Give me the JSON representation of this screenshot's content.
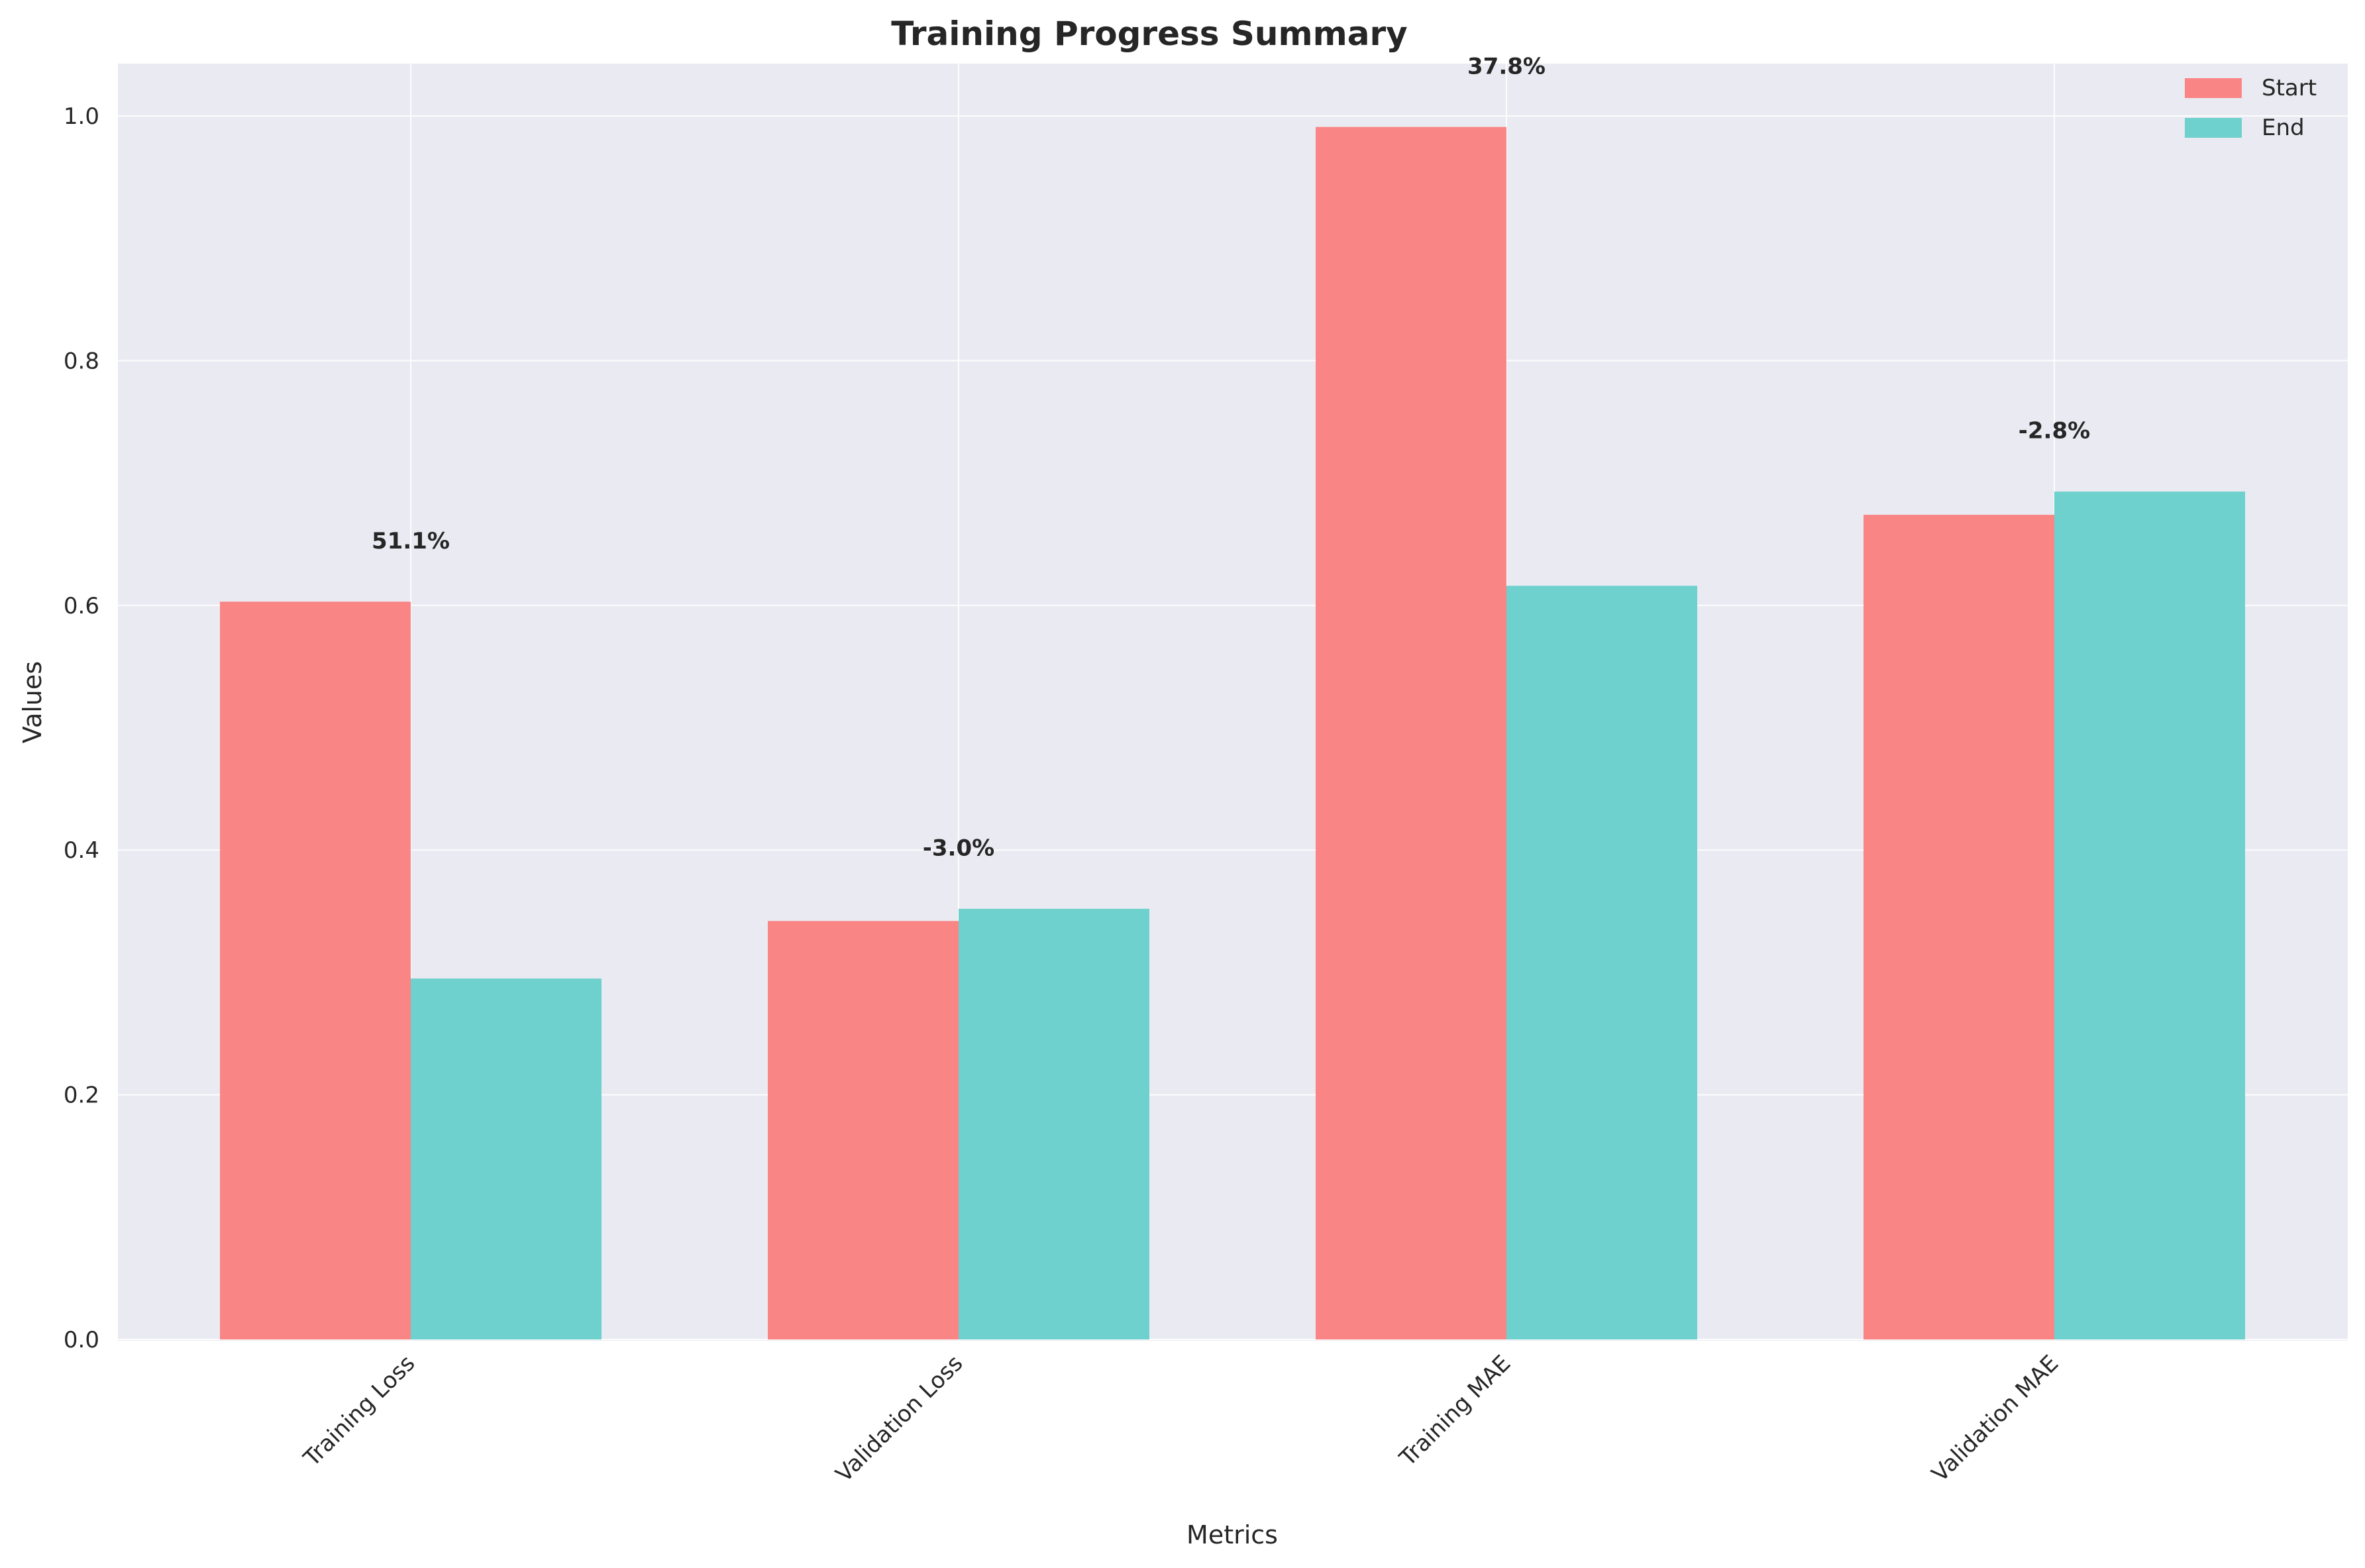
{
  "chart_data": {
    "type": "bar",
    "title": "Training Progress Summary",
    "xlabel": "Metrics",
    "ylabel": "Values",
    "categories": [
      "Training Loss",
      "Validation Loss",
      "Training MAE",
      "Validation MAE"
    ],
    "series": [
      {
        "name": "Start",
        "values": [
          0.603,
          0.342,
          0.991,
          0.674
        ],
        "color": "#fa8585"
      },
      {
        "name": "End",
        "values": [
          0.295,
          0.352,
          0.616,
          0.693
        ],
        "color": "#6fd1cd"
      }
    ],
    "annotations": [
      "51.1%",
      "-3.0%",
      "37.8%",
      "-2.8%"
    ],
    "ylim": [
      0,
      1.04
    ],
    "yticks": [
      "0.0",
      "0.2",
      "0.4",
      "0.6",
      "0.8",
      "1.0"
    ],
    "grid": true,
    "legend_position": "top-right",
    "background": "#eaeaf2"
  }
}
